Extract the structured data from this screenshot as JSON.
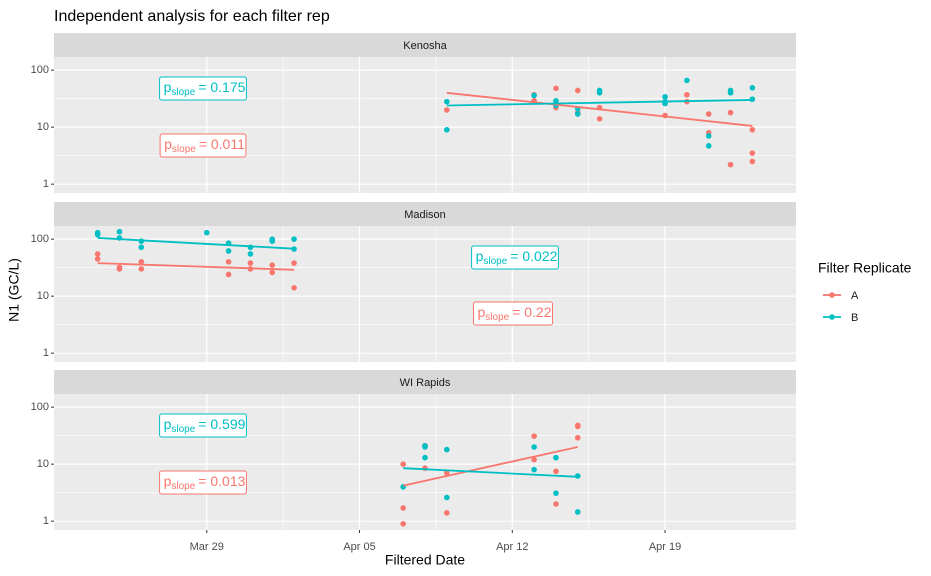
{
  "chart_data": {
    "type": "scatter",
    "title": "Independent analysis for each filter rep",
    "xlabel": "Filtered Date",
    "ylabel": "N1 (GC/L)",
    "legend_title": "Filter Replicate",
    "log_y": true,
    "grid": true,
    "legend_position": "right",
    "series": [
      {
        "name": "A",
        "color": "#F8766D"
      },
      {
        "name": "B",
        "color": "#00BFC4"
      }
    ],
    "xlim": [
      "03-22",
      "04-25"
    ],
    "xticks": [
      {
        "value": "03-29",
        "label": "Mar 29"
      },
      {
        "value": "04-05",
        "label": "Apr 05"
      },
      {
        "value": "04-12",
        "label": "Apr 12"
      },
      {
        "value": "04-19",
        "label": "Apr 19"
      }
    ],
    "ylim": [
      0.7,
      170
    ],
    "yticks": [
      1,
      10,
      100
    ],
    "facets": [
      {
        "title": "Kenosha",
        "points": [
          {
            "x": [
              "04-09",
              "04-13",
              "04-14",
              "04-13",
              "04-14",
              "04-15",
              "04-15",
              "04-16",
              "04-16",
              "04-19",
              "04-20",
              "04-20",
              "04-21",
              "04-21",
              "04-22",
              "04-22",
              "04-23",
              "04-23",
              "04-23"
            ],
            "values": [
              20,
              37,
              48,
              29,
              22,
              44,
              18,
              14,
              22,
              16,
              37,
              28,
              17,
              8,
              18,
              2.2,
              2.5,
              3.5,
              9
            ]
          },
          {
            "x": [
              "04-09",
              "04-09",
              "04-13",
              "04-14",
              "04-14",
              "04-15",
              "04-15",
              "04-16",
              "04-16",
              "04-19",
              "04-19",
              "04-20",
              "04-19",
              "04-21",
              "04-21",
              "04-22",
              "04-22",
              "04-23",
              "04-23"
            ],
            "values": [
              28,
              9,
              36,
              29,
              24,
              21,
              17,
              44,
              40,
              34,
              28,
              66,
              26,
              7,
              4.7,
              40,
              44,
              49,
              31
            ]
          }
        ],
        "fits": [
          {
            "x": [
              "04-09",
              "04-23"
            ],
            "values": [
              40,
              10.5
            ]
          },
          {
            "x": [
              "04-09",
              "04-23"
            ],
            "values": [
              24,
              30
            ]
          }
        ],
        "annotations": [
          {
            "label": "p",
            "subscript": "slope",
            "value_label": "= 0.011"
          },
          {
            "label": "p",
            "subscript": "slope",
            "value_label": "= 0.175"
          }
        ]
      },
      {
        "title": "Madison",
        "points": [
          {
            "x": [
              "03-24",
              "03-24",
              "03-25",
              "03-25",
              "03-26",
              "03-26",
              "03-30",
              "03-30",
              "03-31",
              "03-31",
              "04-01",
              "04-01",
              "04-02",
              "04-02"
            ],
            "values": [
              55,
              45,
              30,
              32,
              40,
              30,
              24,
              40,
              38,
              30,
              35,
              26,
              38,
              14
            ]
          },
          {
            "x": [
              "03-24",
              "03-24",
              "03-25",
              "03-25",
              "03-26",
              "03-26",
              "03-29",
              "03-30",
              "03-30",
              "03-31",
              "03-31",
              "04-01",
              "04-01",
              "04-02",
              "04-02"
            ],
            "values": [
              120,
              130,
              135,
              105,
              92,
              72,
              130,
              85,
              62,
              55,
              72,
              100,
              92,
              100,
              67
            ]
          }
        ],
        "fits": [
          {
            "x": [
              "03-24",
              "04-02"
            ],
            "values": [
              38,
              29
            ]
          },
          {
            "x": [
              "03-24",
              "04-02"
            ],
            "values": [
              105,
              68
            ]
          }
        ],
        "annotations": [
          {
            "label": "p",
            "subscript": "slope",
            "value_label": "= 0.22"
          },
          {
            "label": "p",
            "subscript": "slope",
            "value_label": "= 0.022"
          }
        ]
      },
      {
        "title": "WI Rapids",
        "points": [
          {
            "x": [
              "04-07",
              "04-07",
              "04-07",
              "04-08",
              "04-08",
              "04-09",
              "04-09",
              "04-13",
              "04-13",
              "04-14",
              "04-14",
              "04-15",
              "04-15",
              "04-15"
            ],
            "values": [
              0.9,
              1.7,
              10,
              21,
              8.5,
              7,
              1.4,
              31,
              12,
              7.5,
              2,
              48,
              46,
              29
            ]
          },
          {
            "x": [
              "04-07",
              "04-08",
              "04-08",
              "04-08",
              "04-09",
              "04-09",
              "04-13",
              "04-13",
              "04-14",
              "04-14",
              "04-15",
              "04-15"
            ],
            "values": [
              4,
              20,
              21,
              13,
              2.6,
              18,
              20,
              8,
              13,
              3.1,
              6.2,
              1.45
            ]
          }
        ],
        "fits": [
          {
            "x": [
              "04-07",
              "04-15"
            ],
            "values": [
              4.2,
              20
            ]
          },
          {
            "x": [
              "04-07",
              "04-15"
            ],
            "values": [
              8.5,
              6
            ]
          }
        ],
        "annotations": [
          {
            "label": "p",
            "subscript": "slope",
            "value_label": "= 0.013"
          },
          {
            "label": "p",
            "subscript": "slope",
            "value_label": "= 0.599"
          }
        ]
      }
    ]
  }
}
